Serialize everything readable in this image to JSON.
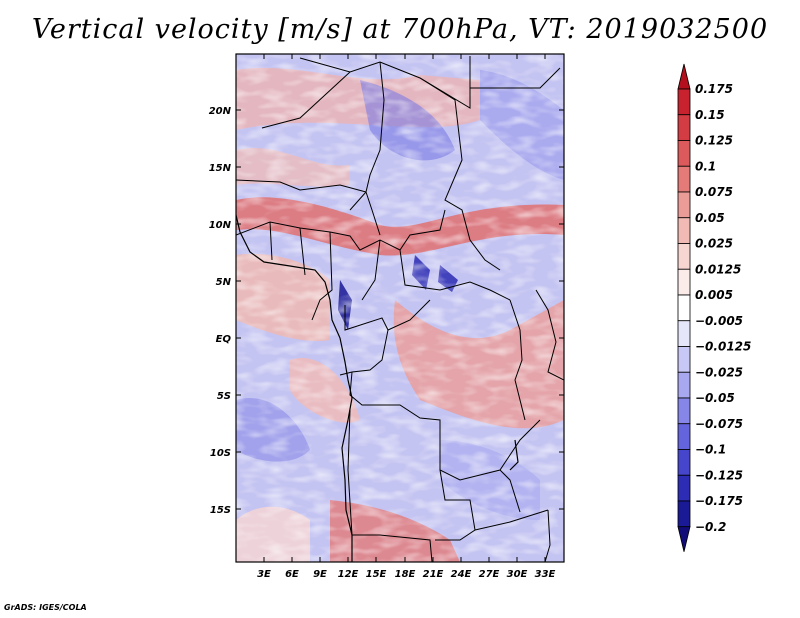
{
  "title": "Vertical velocity [m/s] at 700hPa, VT: 2019032500",
  "credit": "GrADS: IGES/COLA",
  "map": {
    "lat_range": [
      -19,
      25
    ],
    "lon_range": [
      0,
      35
    ],
    "lat_ticks": [
      "20N",
      "15N",
      "10N",
      "5N",
      "EQ",
      "5S",
      "10S",
      "15S"
    ],
    "lon_ticks": [
      "3E",
      "6E",
      "9E",
      "12E",
      "15E",
      "18E",
      "21E",
      "24E",
      "27E",
      "30E",
      "33E"
    ]
  },
  "colorbar": {
    "labels": [
      "0.175",
      "0.15",
      "0.125",
      "0.1",
      "0.075",
      "0.05",
      "0.025",
      "0.0125",
      "0.005",
      "−0.005",
      "−0.0125",
      "−0.025",
      "−0.05",
      "−0.075",
      "−0.1",
      "−0.125",
      "−0.175",
      "−0.2"
    ],
    "colors": [
      "#b30f1c",
      "#c7222e",
      "#d23c42",
      "#dc5a5c",
      "#e47b78",
      "#ec9c96",
      "#f2bab4",
      "#f7d6d2",
      "#fbecea",
      "#ffffff",
      "#e6e6fb",
      "#c8c8f6",
      "#a8a8f0",
      "#8686e8",
      "#6464dc",
      "#4646cc",
      "#2c2cb4",
      "#1a1a96",
      "#120c78"
    ]
  }
}
